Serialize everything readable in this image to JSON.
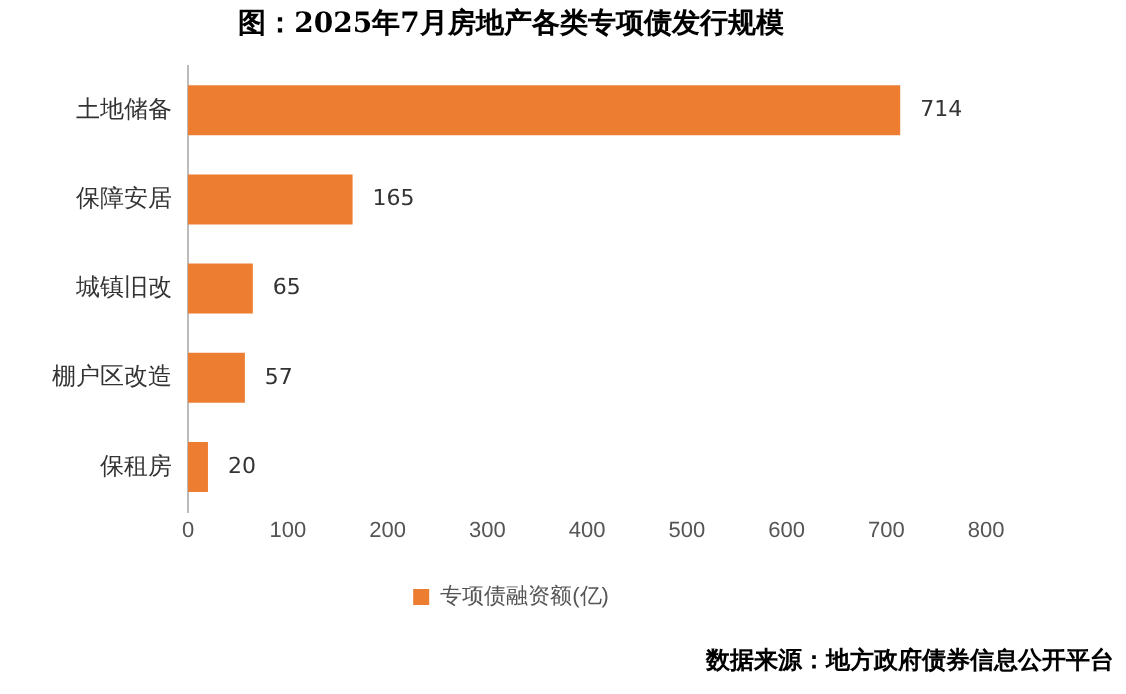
{
  "chart_data": {
    "type": "bar",
    "orientation": "horizontal",
    "title": "图：2025年7月房地产各类专项债发行规模",
    "categories": [
      "土地储备",
      "保障安居",
      "城镇旧改",
      "棚户区改造",
      "保租房"
    ],
    "series": [
      {
        "name": "专项债融资额(亿)",
        "color": "#ed7d31",
        "values": [
          714,
          165,
          65,
          57,
          20
        ]
      }
    ],
    "xlim": [
      0,
      800
    ],
    "xticks": [
      0,
      100,
      200,
      300,
      400,
      500,
      600,
      700,
      800
    ],
    "data_labels": true,
    "grid": false,
    "legend": "bottom",
    "annotations": [
      "数据来源：地方政府债券信息公开平台"
    ]
  }
}
